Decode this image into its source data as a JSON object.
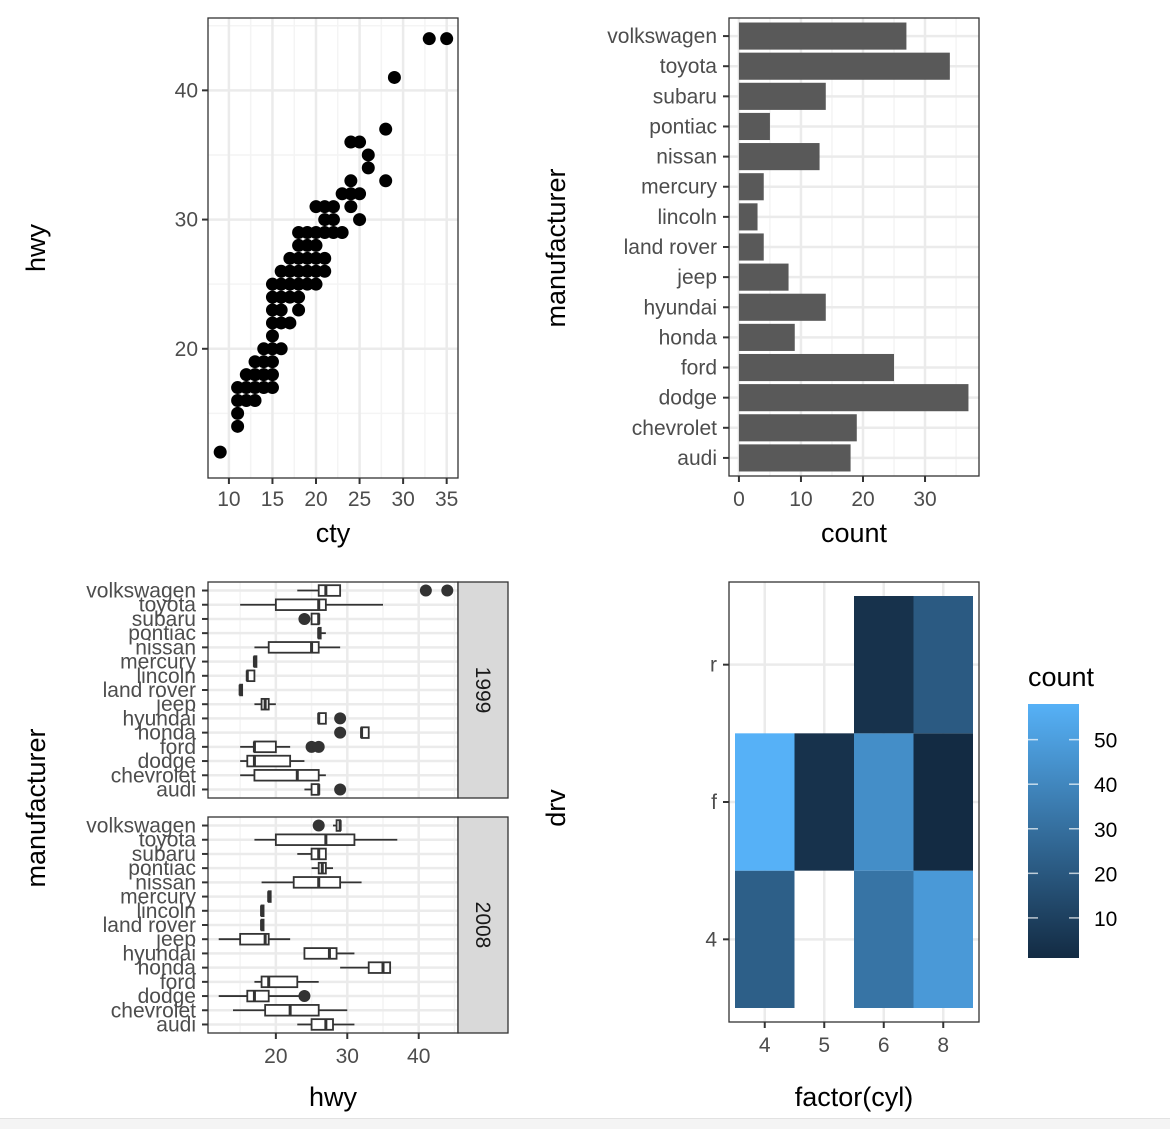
{
  "colors": {
    "panel_border": "#333333",
    "grid_major": "#ebebeb",
    "grid_minor": "#f4f4f4",
    "point": "#000000",
    "bar_fill": "#595959",
    "box_line": "#333333",
    "strip_fill": "#d9d9d9",
    "gradient_low": "#132b43",
    "gradient_high": "#56b1f7"
  },
  "chart_data": [
    {
      "id": "scatter",
      "type": "scatter",
      "title": "",
      "xlabel": "cty",
      "ylabel": "hwy",
      "xlim": [
        7.6,
        36.3
      ],
      "ylim": [
        10.0,
        45.6
      ],
      "xticks": [
        10,
        15,
        20,
        25,
        30,
        35
      ],
      "yticks": [
        20,
        30,
        40
      ],
      "grid": true,
      "points": [
        [
          9,
          12
        ],
        [
          11,
          14
        ],
        [
          11,
          15
        ],
        [
          11,
          16
        ],
        [
          11,
          17
        ],
        [
          12,
          16
        ],
        [
          12,
          17
        ],
        [
          12,
          18
        ],
        [
          13,
          16
        ],
        [
          13,
          17
        ],
        [
          13,
          18
        ],
        [
          13,
          19
        ],
        [
          14,
          17
        ],
        [
          14,
          18
        ],
        [
          14,
          19
        ],
        [
          14,
          20
        ],
        [
          15,
          17
        ],
        [
          15,
          18
        ],
        [
          15,
          19
        ],
        [
          15,
          20
        ],
        [
          15,
          21
        ],
        [
          15,
          22
        ],
        [
          15,
          23
        ],
        [
          15,
          24
        ],
        [
          15,
          25
        ],
        [
          16,
          20
        ],
        [
          16,
          22
        ],
        [
          16,
          23
        ],
        [
          16,
          24
        ],
        [
          16,
          25
        ],
        [
          16,
          26
        ],
        [
          17,
          22
        ],
        [
          17,
          24
        ],
        [
          17,
          25
        ],
        [
          17,
          26
        ],
        [
          17,
          27
        ],
        [
          18,
          23
        ],
        [
          18,
          24
        ],
        [
          18,
          25
        ],
        [
          18,
          26
        ],
        [
          18,
          27
        ],
        [
          18,
          28
        ],
        [
          18,
          29
        ],
        [
          19,
          25
        ],
        [
          19,
          26
        ],
        [
          19,
          27
        ],
        [
          19,
          28
        ],
        [
          19,
          29
        ],
        [
          20,
          25
        ],
        [
          20,
          26
        ],
        [
          20,
          27
        ],
        [
          20,
          28
        ],
        [
          20,
          29
        ],
        [
          20,
          31
        ],
        [
          21,
          26
        ],
        [
          21,
          27
        ],
        [
          21,
          29
        ],
        [
          21,
          30
        ],
        [
          21,
          31
        ],
        [
          22,
          29
        ],
        [
          22,
          30
        ],
        [
          22,
          31
        ],
        [
          23,
          29
        ],
        [
          23,
          32
        ],
        [
          24,
          31
        ],
        [
          24,
          32
        ],
        [
          24,
          33
        ],
        [
          24,
          36
        ],
        [
          25,
          30
        ],
        [
          25,
          32
        ],
        [
          25,
          36
        ],
        [
          26,
          34
        ],
        [
          26,
          35
        ],
        [
          28,
          33
        ],
        [
          28,
          37
        ],
        [
          29,
          41
        ],
        [
          33,
          44
        ],
        [
          35,
          44
        ]
      ]
    },
    {
      "id": "bar",
      "type": "bar",
      "orientation": "horizontal",
      "title": "",
      "xlabel": "count",
      "ylabel": "manufacturer",
      "xlim": [
        -1.6,
        38.7
      ],
      "xticks": [
        0,
        10,
        20,
        30
      ],
      "grid": true,
      "categories": [
        "audi",
        "chevrolet",
        "dodge",
        "ford",
        "honda",
        "hyundai",
        "jeep",
        "land rover",
        "lincoln",
        "mercury",
        "nissan",
        "pontiac",
        "subaru",
        "toyota",
        "volkswagen"
      ],
      "values": [
        18,
        19,
        37,
        25,
        9,
        14,
        8,
        4,
        3,
        4,
        13,
        5,
        14,
        34,
        27
      ]
    },
    {
      "id": "boxplot",
      "type": "box",
      "orientation": "horizontal",
      "title": "",
      "xlabel": "hwy",
      "ylabel": "manufacturer",
      "xlim": [
        10.5,
        45.5
      ],
      "xticks": [
        20,
        30,
        40
      ],
      "grid": true,
      "categories": [
        "audi",
        "chevrolet",
        "dodge",
        "ford",
        "honda",
        "hyundai",
        "jeep",
        "land rover",
        "lincoln",
        "mercury",
        "nissan",
        "pontiac",
        "subaru",
        "toyota",
        "volkswagen"
      ],
      "facets": [
        {
          "label": "1999",
          "boxes": {
            "volkswagen": {
              "lo": 23,
              "q1": 26,
              "med": 27,
              "q3": 29,
              "hi": 29,
              "outliers": [
                41,
                44
              ]
            },
            "toyota": {
              "lo": 15,
              "q1": 20,
              "med": 26,
              "q3": 27,
              "hi": 35,
              "outliers": []
            },
            "subaru": {
              "lo": 25,
              "q1": 25,
              "med": 26,
              "q3": 26,
              "hi": 26,
              "outliers": [
                24
              ]
            },
            "pontiac": {
              "lo": 26,
              "q1": 26,
              "med": 26,
              "q3": 26,
              "hi": 27,
              "outliers": []
            },
            "nissan": {
              "lo": 17,
              "q1": 19,
              "med": 25,
              "q3": 26,
              "hi": 29,
              "outliers": []
            },
            "mercury": {
              "lo": 17,
              "q1": 17,
              "med": 17,
              "q3": 17,
              "hi": 17,
              "outliers": []
            },
            "lincoln": {
              "lo": 16,
              "q1": 16,
              "med": 16,
              "q3": 17,
              "hi": 17,
              "outliers": []
            },
            "land rover": {
              "lo": 15,
              "q1": 15,
              "med": 15,
              "q3": 15,
              "hi": 15,
              "outliers": []
            },
            "jeep": {
              "lo": 17,
              "q1": 18,
              "med": 18.5,
              "q3": 19,
              "hi": 20,
              "outliers": []
            },
            "hyundai": {
              "lo": 26,
              "q1": 26,
              "med": 26,
              "q3": 27,
              "hi": 27,
              "outliers": [
                29
              ]
            },
            "honda": {
              "lo": 32,
              "q1": 32,
              "med": 32,
              "q3": 33,
              "hi": 33,
              "outliers": [
                29
              ]
            },
            "ford": {
              "lo": 15,
              "q1": 17,
              "med": 17,
              "q3": 20,
              "hi": 22,
              "outliers": [
                25,
                26
              ]
            },
            "dodge": {
              "lo": 15,
              "q1": 16,
              "med": 17,
              "q3": 22,
              "hi": 24,
              "outliers": []
            },
            "chevrolet": {
              "lo": 15,
              "q1": 17,
              "med": 23,
              "q3": 26,
              "hi": 27,
              "outliers": []
            },
            "audi": {
              "lo": 24,
              "q1": 25,
              "med": 26,
              "q3": 26,
              "hi": 26,
              "outliers": [
                29
              ]
            }
          }
        },
        {
          "label": "2008",
          "boxes": {
            "volkswagen": {
              "lo": 28,
              "q1": 28.5,
              "med": 29,
              "q3": 29,
              "hi": 29,
              "outliers": [
                26
              ]
            },
            "toyota": {
              "lo": 17,
              "q1": 20,
              "med": 27,
              "q3": 31,
              "hi": 37,
              "outliers": []
            },
            "subaru": {
              "lo": 23,
              "q1": 25,
              "med": 26,
              "q3": 27,
              "hi": 27,
              "outliers": []
            },
            "pontiac": {
              "lo": 25,
              "q1": 26,
              "med": 26.5,
              "q3": 27,
              "hi": 28,
              "outliers": []
            },
            "nissan": {
              "lo": 18,
              "q1": 22.5,
              "med": 26,
              "q3": 29,
              "hi": 32,
              "outliers": []
            },
            "mercury": {
              "lo": 19,
              "q1": 19,
              "med": 19,
              "q3": 19,
              "hi": 19,
              "outliers": []
            },
            "lincoln": {
              "lo": 18,
              "q1": 18,
              "med": 18,
              "q3": 18,
              "hi": 18,
              "outliers": []
            },
            "land rover": {
              "lo": 18,
              "q1": 18,
              "med": 18,
              "q3": 18,
              "hi": 18,
              "outliers": []
            },
            "jeep": {
              "lo": 12,
              "q1": 15,
              "med": 18.5,
              "q3": 19,
              "hi": 22,
              "outliers": []
            },
            "hyundai": {
              "lo": 24,
              "q1": 24,
              "med": 27.5,
              "q3": 28.5,
              "hi": 31,
              "outliers": []
            },
            "honda": {
              "lo": 29,
              "q1": 33,
              "med": 35,
              "q3": 36,
              "hi": 36,
              "outliers": []
            },
            "ford": {
              "lo": 17,
              "q1": 18,
              "med": 19,
              "q3": 23,
              "hi": 26,
              "outliers": []
            },
            "dodge": {
              "lo": 12,
              "q1": 16,
              "med": 17,
              "q3": 19,
              "hi": 24,
              "outliers": [
                24
              ]
            },
            "chevrolet": {
              "lo": 14,
              "q1": 18.5,
              "med": 22,
              "q3": 26,
              "hi": 30,
              "outliers": []
            },
            "audi": {
              "lo": 23,
              "q1": 25,
              "med": 27,
              "q3": 28,
              "hi": 31,
              "outliers": []
            }
          }
        }
      ]
    },
    {
      "id": "heatmap",
      "type": "heatmap",
      "title": "",
      "xlabel": "factor(cyl)",
      "ylabel": "drv",
      "x_categories": [
        "4",
        "5",
        "6",
        "8"
      ],
      "y_categories": [
        "4",
        "f",
        "r"
      ],
      "grid": true,
      "cells": [
        {
          "x": "4",
          "y": "4",
          "count": 23
        },
        {
          "x": "4",
          "y": "f",
          "count": 58
        },
        {
          "x": "5",
          "y": "f",
          "count": 4
        },
        {
          "x": "6",
          "y": "4",
          "count": 32
        },
        {
          "x": "6",
          "y": "f",
          "count": 43
        },
        {
          "x": "6",
          "y": "r",
          "count": 4
        },
        {
          "x": "8",
          "y": "4",
          "count": 48
        },
        {
          "x": "8",
          "y": "f",
          "count": 1
        },
        {
          "x": "8",
          "y": "r",
          "count": 21
        }
      ],
      "legend": {
        "title": "count",
        "position": "right",
        "range": [
          1,
          58
        ],
        "ticks": [
          10,
          20,
          30,
          40,
          50
        ]
      }
    }
  ]
}
